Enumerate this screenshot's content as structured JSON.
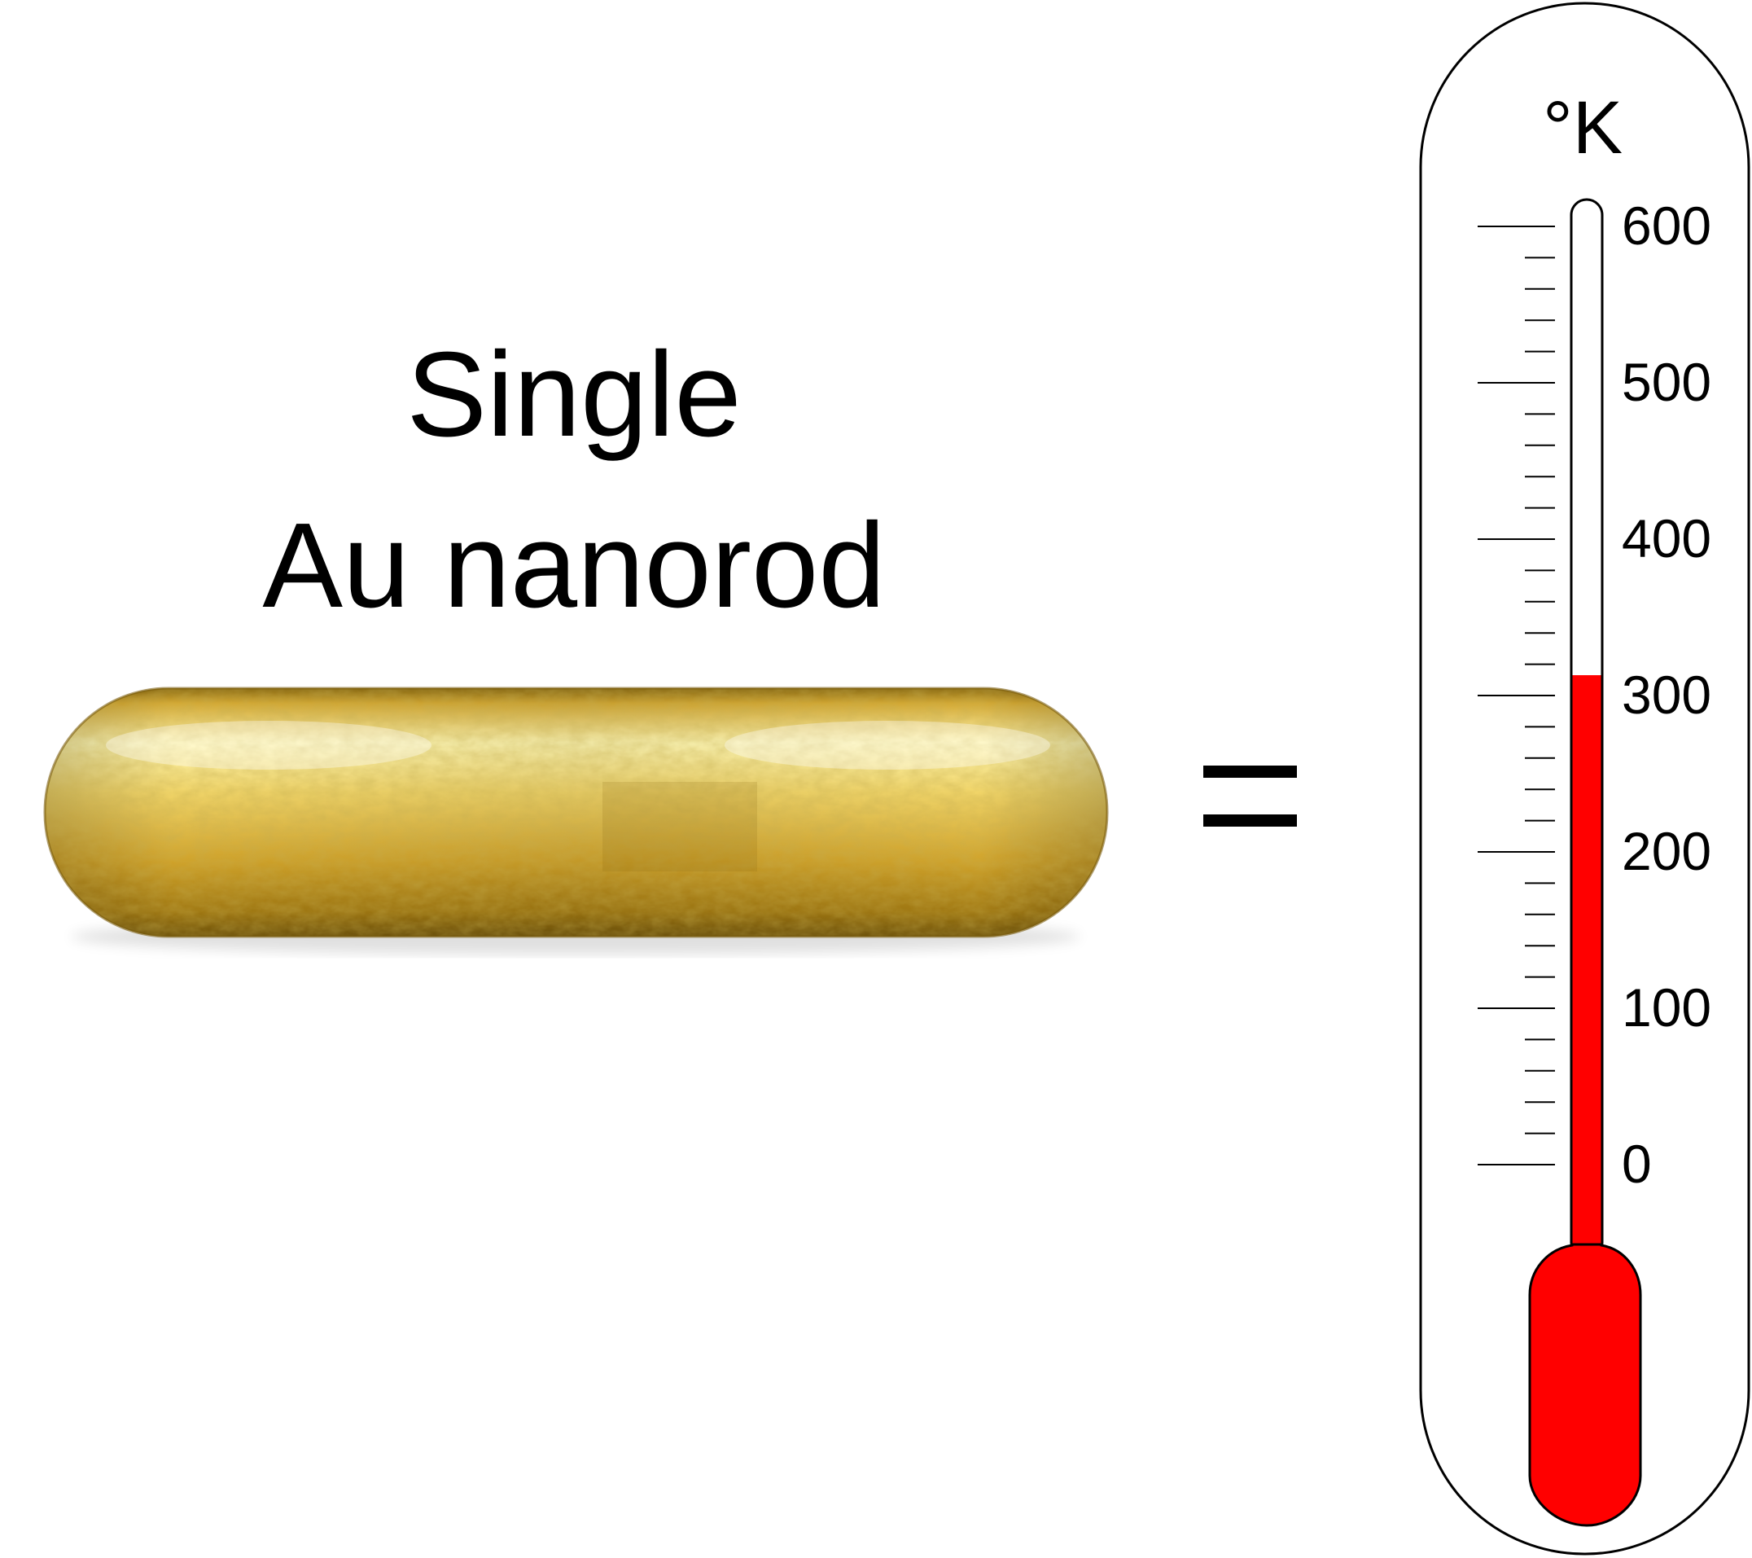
{
  "title": {
    "line1": "Single",
    "line2": "Au nanorod"
  },
  "thermometer": {
    "unit": "°K",
    "scale_min": 0,
    "scale_max": 600,
    "major_ticks": [
      "0",
      "100",
      "200",
      "300",
      "400",
      "500",
      "600"
    ],
    "minor_per_major": 5,
    "reading": 313,
    "fluid_color": "#ff0000"
  },
  "nanorod": {
    "color_light": "#fff3a8",
    "color_mid": "#e8c24a",
    "color_dark": "#9a7410"
  }
}
